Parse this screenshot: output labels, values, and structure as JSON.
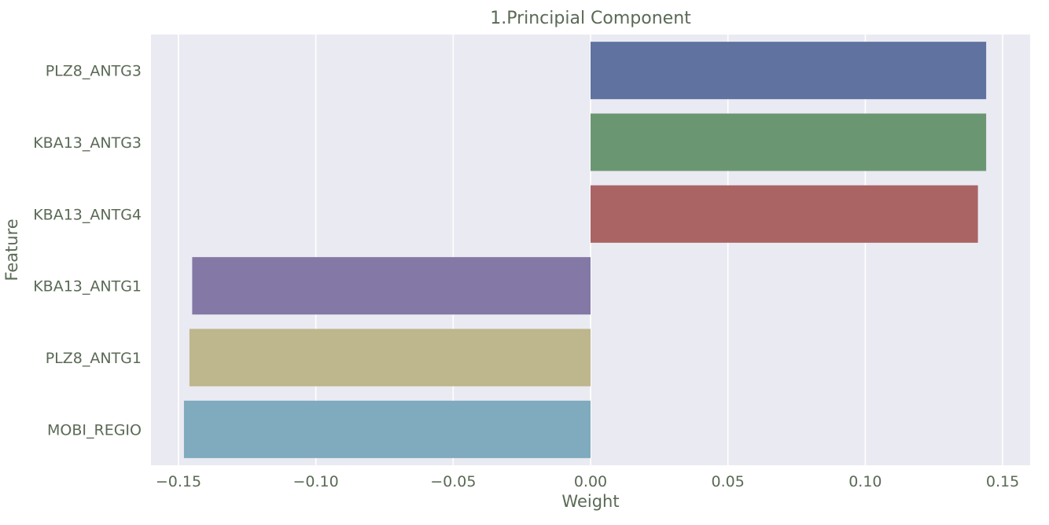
{
  "chart_data": {
    "type": "bar",
    "orientation": "horizontal",
    "title": "1.Principial Component",
    "xlabel": "Weight",
    "ylabel": "Feature",
    "categories": [
      "PLZ8_ANTG3",
      "KBA13_ANTG3",
      "KBA13_ANTG4",
      "KBA13_ANTG1",
      "PLZ8_ANTG1",
      "MOBI_REGIO"
    ],
    "values": [
      0.144,
      0.144,
      0.141,
      -0.145,
      -0.146,
      -0.148
    ],
    "colors": [
      "#6073a0",
      "#6a9772",
      "#aa6464",
      "#8479a6",
      "#beb68c",
      "#80aabd"
    ],
    "xlim": [
      -0.16,
      0.16
    ],
    "xticks": [
      -0.15,
      -0.1,
      -0.05,
      0.0,
      0.05,
      0.1,
      0.15
    ],
    "xtick_labels": [
      "−0.15",
      "−0.10",
      "−0.05",
      "0.00",
      "0.05",
      "0.10",
      "0.15"
    ],
    "grid": true,
    "legend": "none"
  }
}
